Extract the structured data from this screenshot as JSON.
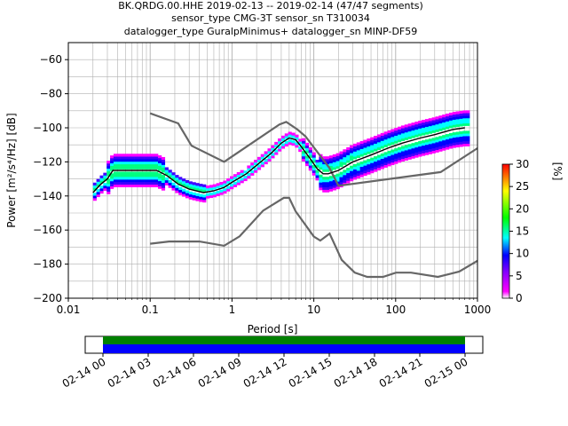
{
  "title_lines": [
    "BK.QRDG.00.HHE   2019-02-13 -- 2019-02-14  (47/47 segments)",
    "sensor_type CMG-3T sensor_sn T310034",
    "datalogger_type GuralpMinimus+ datalogger_sn MINP-DF59"
  ],
  "colorbar": {
    "label": "[%]",
    "ticks": [
      "0",
      "5",
      "10",
      "15",
      "20",
      "25",
      "30"
    ],
    "colors": [
      "#ffffff",
      "#ff00ff",
      "#0000ff",
      "#00ffff",
      "#00ff00",
      "#ffff00",
      "#ff0000"
    ]
  },
  "timeline": {
    "ticks": [
      "02-14 00",
      "02-14 03",
      "02-14 06",
      "02-14 09",
      "02-14 12",
      "02-14 15",
      "02-14 18",
      "02-14 21",
      "02-15 00"
    ],
    "bar_colors": [
      "#008000",
      "#0000ff"
    ]
  },
  "chart_data": {
    "type": "heatmap",
    "xlabel": "Period [s]",
    "ylabel": "Power [m²/s⁴/Hz] [dB]",
    "x_scale": "log",
    "xlim": [
      0.01,
      1000
    ],
    "ylim": [
      -200,
      -50
    ],
    "x_tick_labels": [
      "0.01",
      "0.1",
      "1",
      "10",
      "100",
      "1000"
    ],
    "y_tick_labels": [
      "−200",
      "−180",
      "−160",
      "−140",
      "−120",
      "−100",
      "−80",
      "−60"
    ],
    "grid": true,
    "noise_model_high": {
      "x": [
        0.1,
        0.22,
        0.32,
        0.8,
        3.8,
        4.6,
        6.3,
        7.9,
        15.4,
        20,
        354.8,
        1000
      ],
      "y": [
        -91.5,
        -97.4,
        -110.5,
        -120,
        -98,
        -96.5,
        -101,
        -105,
        -123.4,
        -134,
        -126,
        -112
      ]
    },
    "noise_model_low": {
      "x": [
        0.1,
        0.17,
        0.4,
        0.8,
        1.24,
        2.4,
        4.3,
        5,
        6,
        10,
        12,
        15.6,
        21.9,
        31.6,
        45,
        70,
        101,
        154,
        328,
        600,
        1000
      ],
      "y": [
        -168,
        -166.7,
        -166.7,
        -169.2,
        -163.7,
        -148.6,
        -141.1,
        -141.1,
        -149,
        -163.8,
        -166.2,
        -162.1,
        -177.5,
        -185,
        -187.5,
        -187.5,
        -185,
        -185,
        -187.5,
        -184.4,
        -178
      ]
    },
    "median_curve": {
      "x": [
        0.02,
        0.025,
        0.03,
        0.035,
        0.05,
        0.08,
        0.12,
        0.16,
        0.22,
        0.3,
        0.45,
        0.6,
        0.8,
        1,
        1.5,
        2,
        3,
        4,
        5,
        6,
        7,
        9,
        11,
        13,
        15,
        20,
        30,
        50,
        80,
        120,
        200,
        300,
        500,
        700
      ],
      "y": [
        -138,
        -133,
        -130,
        -125,
        -125,
        -125,
        -125,
        -128,
        -133,
        -136,
        -138,
        -137,
        -135,
        -132,
        -127,
        -122,
        -115,
        -109,
        -106,
        -107,
        -111,
        -118,
        -124,
        -127,
        -127,
        -125,
        -120,
        -116,
        -112,
        -109,
        -106,
        -104,
        -101,
        -100
      ]
    }
  }
}
